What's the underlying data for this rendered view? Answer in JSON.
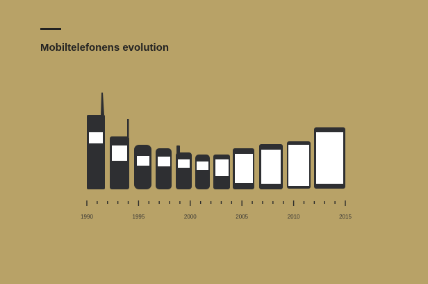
{
  "title": "Mobiltelefonens evolution",
  "timeline": {
    "labels": [
      "1990",
      "1995",
      "2000",
      "2005",
      "2010",
      "2015"
    ]
  }
}
